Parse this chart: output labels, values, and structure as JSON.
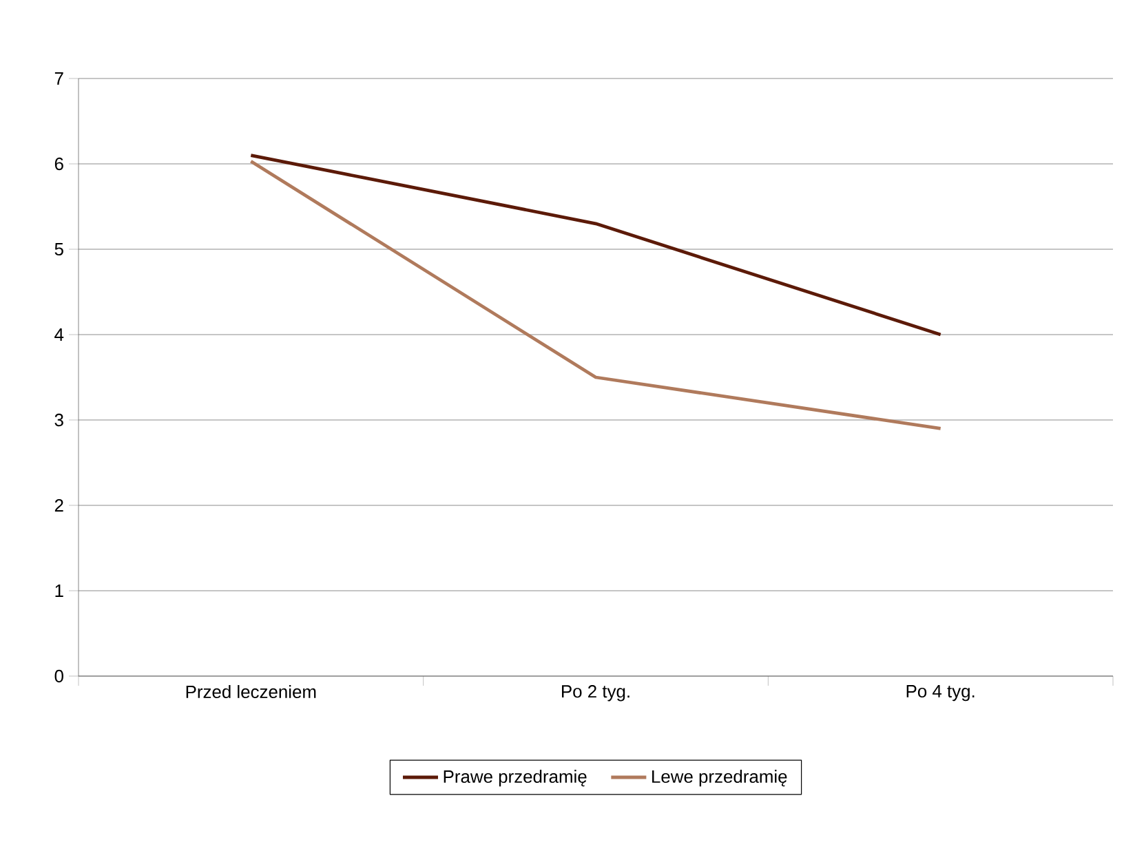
{
  "chart_data": {
    "type": "line",
    "categories": [
      "Przed leczeniem",
      "Po 2 tyg.",
      "Po 4 tyg."
    ],
    "series": [
      {
        "name": "Prawe przedramię",
        "color": "#5c1a08",
        "values": [
          6.1,
          5.3,
          4.0
        ]
      },
      {
        "name": "Lewe przedramię",
        "color": "#b07a5c",
        "values": [
          6.03,
          3.5,
          2.9
        ]
      }
    ],
    "ylim": [
      0,
      7
    ],
    "yticks": [
      0,
      1,
      2,
      3,
      4,
      5,
      6,
      7
    ],
    "grid": "y",
    "legend": "bottom",
    "marker": "none",
    "line_style": "solid"
  }
}
